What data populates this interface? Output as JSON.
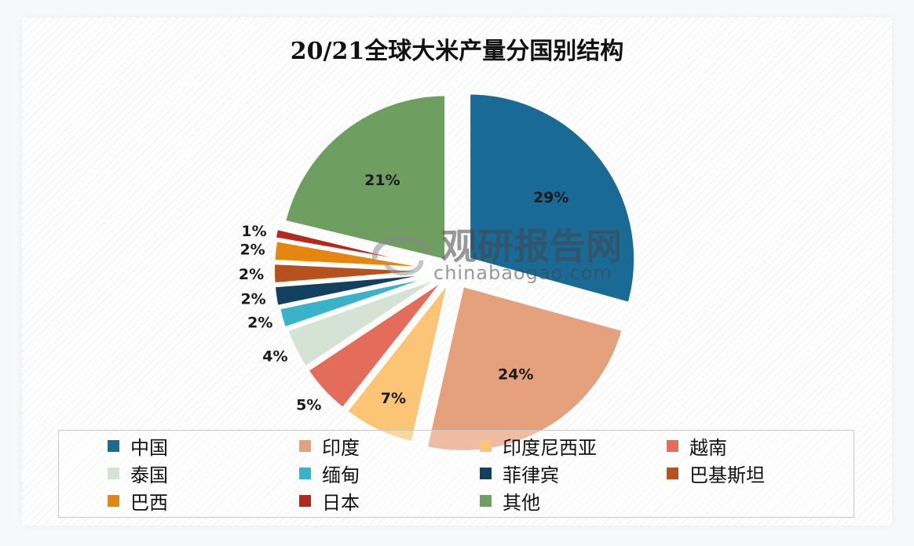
{
  "title": "20/21全球大米产量分国别结构",
  "watermark": {
    "cn": "观研报告网",
    "en": "chinabaogao.com"
  },
  "chart_data": {
    "type": "pie",
    "title": "20/21全球大米产量分国别结构",
    "exploded": true,
    "start_angle": "12 o'clock",
    "direction": "clockwise",
    "legend_position": "bottom",
    "categories": [
      "中国",
      "印度",
      "印度尼西亚",
      "越南",
      "泰国",
      "缅甸",
      "菲律宾",
      "巴基斯坦",
      "巴西",
      "日本",
      "其他"
    ],
    "values": [
      29,
      24,
      7,
      5,
      4,
      2,
      2,
      2,
      2,
      1,
      21
    ],
    "labels": [
      "29%",
      "24%",
      "7%",
      "5%",
      "4%",
      "2%",
      "2%",
      "2%",
      "2%",
      "1%",
      "21%"
    ],
    "colors": [
      "#1a6a96",
      "#e5a07c",
      "#fcc575",
      "#e36c5a",
      "#d5e3d4",
      "#3ab2c9",
      "#12415f",
      "#b5521e",
      "#e5870f",
      "#b5291c",
      "#6e9e60"
    ],
    "unit": "%"
  },
  "legend": [
    {
      "label": "中国",
      "color": "#1a6a96"
    },
    {
      "label": "印度",
      "color": "#e5a07c"
    },
    {
      "label": "印度尼西亚",
      "color": "#fcc575"
    },
    {
      "label": "越南",
      "color": "#e36c5a"
    },
    {
      "label": "泰国",
      "color": "#d5e3d4"
    },
    {
      "label": "缅甸",
      "color": "#3ab2c9"
    },
    {
      "label": "菲律宾",
      "color": "#12415f"
    },
    {
      "label": "巴基斯坦",
      "color": "#b5521e"
    },
    {
      "label": "巴西",
      "color": "#e5870f"
    },
    {
      "label": "日本",
      "color": "#b5291c"
    },
    {
      "label": "其他",
      "color": "#6e9e60"
    }
  ]
}
